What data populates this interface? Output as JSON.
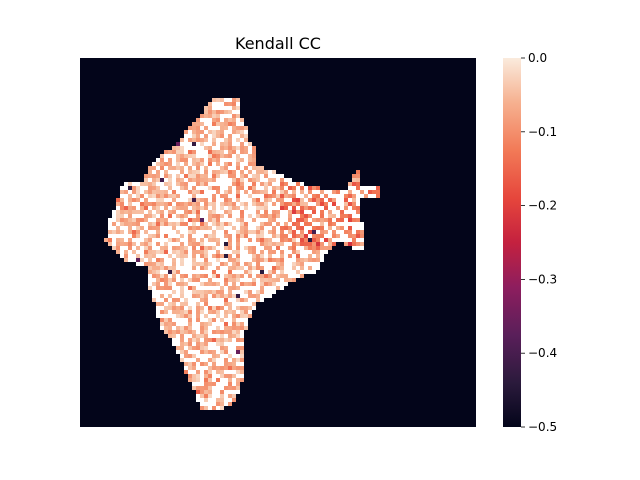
{
  "chart_data": {
    "type": "heatmap",
    "title": "Kendall CC",
    "colorbar": {
      "min": -0.5,
      "max": 0.0,
      "ticks": [
        0.0,
        -0.1,
        -0.2,
        -0.3,
        -0.4,
        -0.5
      ],
      "tick_labels": [
        "0.0",
        "−0.1",
        "−0.2",
        "−0.3",
        "−0.4",
        "−0.5"
      ],
      "colormap": "rocket"
    },
    "background_value": -0.5,
    "region": "India (land grid cells)",
    "x_ticks_visible": false,
    "y_ticks_visible": false
  }
}
